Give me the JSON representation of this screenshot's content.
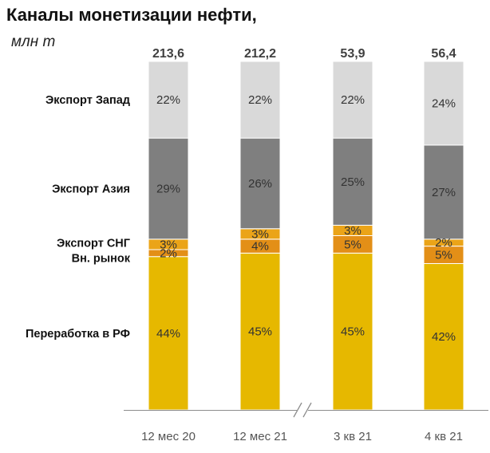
{
  "chart_data": {
    "type": "bar",
    "title": "Каналы монетизации нефти,",
    "subtitle": "млн т",
    "categories": [
      "12 мес 20",
      "12 мес 21",
      "3 кв 21",
      "4 кв 21"
    ],
    "totals": [
      "213,6",
      "212,2",
      "53,9",
      "56,4"
    ],
    "series": [
      {
        "name": "Переработка в РФ",
        "color": "#E6B800",
        "values": [
          44,
          45,
          45,
          42
        ],
        "labels": [
          "44%",
          "45%",
          "45%",
          "42%"
        ]
      },
      {
        "name": "Вн. рынок",
        "color": "#E38F17",
        "values": [
          2,
          4,
          5,
          5
        ],
        "labels": [
          "2%",
          "4%",
          "5%",
          "5%"
        ]
      },
      {
        "name": "Экспорт СНГ",
        "color": "#EBA418",
        "values": [
          3,
          3,
          3,
          2
        ],
        "labels": [
          "3%",
          "3%",
          "3%",
          "2%"
        ]
      },
      {
        "name": "Экспорт Азия",
        "color": "#7F7F7F",
        "values": [
          29,
          26,
          25,
          27
        ],
        "labels": [
          "29%",
          "26%",
          "25%",
          "27%"
        ]
      },
      {
        "name": "Экспорт Запад",
        "color": "#D9D9D9",
        "values": [
          22,
          22,
          22,
          24
        ],
        "labels": [
          "22%",
          "22%",
          "22%",
          "24%"
        ]
      }
    ],
    "axis_break_between": [
      "12 мес 21",
      "3 кв 21"
    ],
    "grid": false,
    "legend": "left"
  }
}
